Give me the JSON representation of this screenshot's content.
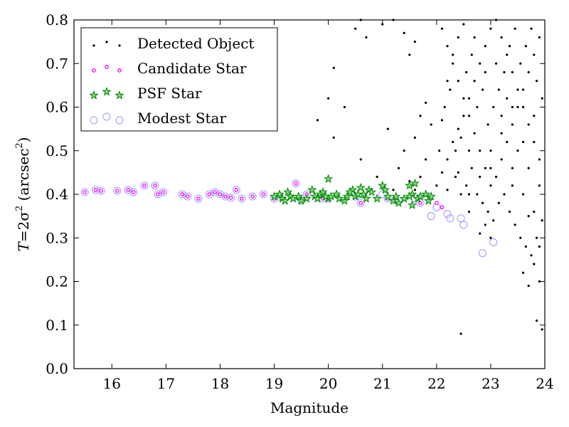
{
  "chart_data": {
    "type": "scatter",
    "title": "",
    "xlabel": "Magnitude",
    "ylabel_parts": {
      "pre": "T",
      "mid": "=2σ",
      "sup1": "2",
      "unit_open": " (arcsec",
      "sup2": "2",
      "unit_close": ")"
    },
    "xlim": [
      15.3,
      24.0
    ],
    "ylim": [
      0.0,
      0.8
    ],
    "xticks": [
      "16",
      "17",
      "18",
      "19",
      "20",
      "21",
      "22",
      "23",
      "24"
    ],
    "yticks": [
      "0.0",
      "0.1",
      "0.2",
      "0.3",
      "0.4",
      "0.5",
      "0.6",
      "0.7",
      "0.8"
    ],
    "grid": false,
    "legend_position": "top-left",
    "series": [
      {
        "name": "Detected Object",
        "marker": "dot",
        "color": "#000000",
        "points": [
          [
            20.5,
            0.78
          ],
          [
            20.6,
            0.8
          ],
          [
            20.7,
            0.76
          ],
          [
            21.0,
            0.79
          ],
          [
            21.2,
            0.8
          ],
          [
            21.4,
            0.77
          ],
          [
            21.5,
            0.72
          ],
          [
            21.6,
            0.75
          ],
          [
            20.1,
            0.69
          ],
          [
            19.8,
            0.57
          ],
          [
            20.0,
            0.62
          ],
          [
            20.3,
            0.6
          ],
          [
            20.1,
            0.53
          ],
          [
            20.6,
            0.48
          ],
          [
            21.1,
            0.55
          ],
          [
            21.3,
            0.46
          ],
          [
            21.4,
            0.5
          ],
          [
            21.6,
            0.53
          ],
          [
            21.7,
            0.58
          ],
          [
            21.8,
            0.61
          ],
          [
            21.9,
            0.56
          ],
          [
            21.5,
            0.43
          ],
          [
            21.7,
            0.44
          ],
          [
            21.8,
            0.48
          ],
          [
            20.9,
            0.44
          ],
          [
            21.2,
            0.41
          ],
          [
            21.6,
            0.41
          ],
          [
            22.0,
            0.42
          ],
          [
            22.1,
            0.45
          ],
          [
            22.2,
            0.48
          ],
          [
            22.3,
            0.52
          ],
          [
            22.4,
            0.55
          ],
          [
            22.5,
            0.58
          ],
          [
            22.6,
            0.62
          ],
          [
            22.7,
            0.66
          ],
          [
            22.8,
            0.7
          ],
          [
            22.9,
            0.74
          ],
          [
            23.0,
            0.78
          ],
          [
            23.1,
            0.8
          ],
          [
            23.2,
            0.76
          ],
          [
            23.3,
            0.72
          ],
          [
            23.4,
            0.68
          ],
          [
            23.5,
            0.64
          ],
          [
            23.6,
            0.6
          ],
          [
            23.7,
            0.56
          ],
          [
            23.8,
            0.52
          ],
          [
            23.9,
            0.48
          ],
          [
            22.1,
            0.78
          ],
          [
            22.2,
            0.74
          ],
          [
            22.3,
            0.7
          ],
          [
            22.4,
            0.66
          ],
          [
            22.5,
            0.62
          ],
          [
            22.6,
            0.58
          ],
          [
            22.7,
            0.54
          ],
          [
            22.8,
            0.5
          ],
          [
            22.9,
            0.46
          ],
          [
            23.0,
            0.42
          ],
          [
            23.1,
            0.44
          ],
          [
            23.2,
            0.48
          ],
          [
            23.3,
            0.52
          ],
          [
            23.4,
            0.56
          ],
          [
            23.5,
            0.6
          ],
          [
            23.6,
            0.64
          ],
          [
            23.7,
            0.68
          ],
          [
            23.8,
            0.72
          ],
          [
            23.9,
            0.76
          ],
          [
            22.15,
            0.6
          ],
          [
            22.25,
            0.64
          ],
          [
            22.35,
            0.44
          ],
          [
            22.45,
            0.4
          ],
          [
            22.55,
            0.42
          ],
          [
            22.65,
            0.46
          ],
          [
            22.75,
            0.4
          ],
          [
            22.85,
            0.38
          ],
          [
            22.95,
            0.36
          ],
          [
            23.05,
            0.34
          ],
          [
            23.15,
            0.38
          ],
          [
            23.25,
            0.4
          ],
          [
            23.35,
            0.36
          ],
          [
            23.45,
            0.33
          ],
          [
            23.55,
            0.3
          ],
          [
            23.65,
            0.28
          ],
          [
            23.75,
            0.26
          ],
          [
            23.85,
            0.3
          ],
          [
            23.95,
            0.34
          ],
          [
            23.6,
            0.22
          ],
          [
            23.7,
            0.19
          ],
          [
            23.8,
            0.24
          ],
          [
            23.9,
            0.2
          ],
          [
            23.85,
            0.11
          ],
          [
            23.95,
            0.09
          ],
          [
            22.45,
            0.08
          ],
          [
            22.8,
            0.31
          ],
          [
            22.9,
            0.33
          ],
          [
            23.0,
            0.3
          ],
          [
            22.6,
            0.36
          ],
          [
            22.35,
            0.5
          ],
          [
            22.45,
            0.53
          ],
          [
            22.55,
            0.68
          ],
          [
            22.65,
            0.72
          ],
          [
            22.75,
            0.6
          ],
          [
            22.85,
            0.64
          ],
          [
            22.95,
            0.56
          ],
          [
            23.05,
            0.6
          ],
          [
            23.15,
            0.64
          ],
          [
            23.25,
            0.68
          ],
          [
            23.35,
            0.74
          ],
          [
            23.45,
            0.78
          ],
          [
            23.55,
            0.7
          ],
          [
            23.65,
            0.74
          ],
          [
            23.75,
            0.78
          ],
          [
            23.85,
            0.66
          ],
          [
            23.95,
            0.62
          ],
          [
            22.05,
            0.5
          ],
          [
            22.1,
            0.57
          ],
          [
            22.2,
            0.66
          ],
          [
            22.3,
            0.72
          ],
          [
            22.4,
            0.76
          ],
          [
            22.5,
            0.79
          ],
          [
            22.7,
            0.76
          ],
          [
            22.9,
            0.68
          ],
          [
            23.1,
            0.7
          ],
          [
            23.3,
            0.62
          ],
          [
            23.5,
            0.5
          ],
          [
            23.7,
            0.46
          ],
          [
            23.9,
            0.42
          ],
          [
            23.2,
            0.54
          ],
          [
            23.4,
            0.46
          ],
          [
            23.6,
            0.4
          ],
          [
            23.8,
            0.36
          ],
          [
            22.6,
            0.5
          ],
          [
            22.8,
            0.44
          ],
          [
            23.0,
            0.5
          ],
          [
            23.2,
            0.58
          ],
          [
            23.4,
            0.6
          ],
          [
            23.6,
            0.52
          ],
          [
            23.8,
            0.58
          ],
          [
            22.2,
            0.41
          ],
          [
            22.4,
            0.45
          ],
          [
            22.6,
            0.4
          ],
          [
            23.0,
            0.46
          ],
          [
            23.4,
            0.42
          ],
          [
            23.7,
            0.35
          ],
          [
            23.9,
            0.28
          ]
        ]
      },
      {
        "name": "Candidate Star",
        "marker": "small-circle",
        "color": "#ff00ff",
        "points": [
          [
            15.5,
            0.405
          ],
          [
            15.7,
            0.41
          ],
          [
            15.8,
            0.408
          ],
          [
            16.1,
            0.408
          ],
          [
            16.3,
            0.41
          ],
          [
            16.4,
            0.405
          ],
          [
            16.6,
            0.42
          ],
          [
            16.8,
            0.42
          ],
          [
            16.85,
            0.4
          ],
          [
            16.95,
            0.405
          ],
          [
            17.3,
            0.4
          ],
          [
            17.4,
            0.395
          ],
          [
            17.6,
            0.39
          ],
          [
            17.8,
            0.4
          ],
          [
            17.9,
            0.405
          ],
          [
            18.0,
            0.4
          ],
          [
            18.1,
            0.395
          ],
          [
            18.2,
            0.392
          ],
          [
            18.3,
            0.41
          ],
          [
            18.4,
            0.39
          ],
          [
            18.6,
            0.395
          ],
          [
            18.8,
            0.4
          ],
          [
            19.0,
            0.39
          ],
          [
            19.4,
            0.425
          ],
          [
            19.6,
            0.4
          ],
          [
            19.9,
            0.39
          ],
          [
            20.6,
            0.38
          ],
          [
            21.1,
            0.39
          ],
          [
            21.7,
            0.38
          ],
          [
            22.0,
            0.38
          ],
          [
            22.1,
            0.37
          ]
        ]
      },
      {
        "name": "PSF Star",
        "marker": "star",
        "color": "#008000",
        "points": [
          [
            19.0,
            0.395
          ],
          [
            19.1,
            0.4
          ],
          [
            19.15,
            0.39
          ],
          [
            19.2,
            0.385
          ],
          [
            19.25,
            0.405
          ],
          [
            19.3,
            0.395
          ],
          [
            19.35,
            0.39
          ],
          [
            19.45,
            0.395
          ],
          [
            19.5,
            0.385
          ],
          [
            19.6,
            0.39
          ],
          [
            19.7,
            0.41
          ],
          [
            19.75,
            0.395
          ],
          [
            19.8,
            0.39
          ],
          [
            19.85,
            0.4
          ],
          [
            19.9,
            0.405
          ],
          [
            20.0,
            0.39
          ],
          [
            20.0,
            0.435
          ],
          [
            20.05,
            0.395
          ],
          [
            20.15,
            0.4
          ],
          [
            20.2,
            0.39
          ],
          [
            20.3,
            0.385
          ],
          [
            20.35,
            0.395
          ],
          [
            20.45,
            0.41
          ],
          [
            20.5,
            0.395
          ],
          [
            20.6,
            0.415
          ],
          [
            20.65,
            0.4
          ],
          [
            20.7,
            0.39
          ],
          [
            20.75,
            0.41
          ],
          [
            20.8,
            0.405
          ],
          [
            20.9,
            0.39
          ],
          [
            21.0,
            0.42
          ],
          [
            21.05,
            0.41
          ],
          [
            21.1,
            0.395
          ],
          [
            21.2,
            0.385
          ],
          [
            21.25,
            0.395
          ],
          [
            21.3,
            0.38
          ],
          [
            21.4,
            0.39
          ],
          [
            21.5,
            0.42
          ],
          [
            21.55,
            0.4
          ],
          [
            21.6,
            0.425
          ],
          [
            21.65,
            0.39
          ],
          [
            21.7,
            0.395
          ],
          [
            21.8,
            0.4
          ],
          [
            21.85,
            0.385
          ],
          [
            21.9,
            0.395
          ],
          [
            21.5,
            0.395
          ],
          [
            21.55,
            0.375
          ],
          [
            20.4,
            0.405
          ],
          [
            19.95,
            0.395
          ],
          [
            20.55,
            0.4
          ]
        ]
      },
      {
        "name": "Modest Star",
        "marker": "open-circle",
        "color": "#9999ff",
        "points": [
          [
            15.5,
            0.405
          ],
          [
            15.7,
            0.41
          ],
          [
            15.8,
            0.408
          ],
          [
            16.1,
            0.408
          ],
          [
            16.3,
            0.41
          ],
          [
            16.4,
            0.405
          ],
          [
            16.6,
            0.42
          ],
          [
            16.8,
            0.42
          ],
          [
            16.85,
            0.4
          ],
          [
            16.95,
            0.405
          ],
          [
            17.3,
            0.4
          ],
          [
            17.4,
            0.395
          ],
          [
            17.6,
            0.39
          ],
          [
            17.8,
            0.4
          ],
          [
            17.9,
            0.405
          ],
          [
            18.0,
            0.4
          ],
          [
            18.1,
            0.395
          ],
          [
            18.2,
            0.392
          ],
          [
            18.3,
            0.41
          ],
          [
            18.4,
            0.39
          ],
          [
            18.6,
            0.395
          ],
          [
            18.8,
            0.4
          ],
          [
            19.0,
            0.39
          ],
          [
            19.4,
            0.425
          ],
          [
            19.6,
            0.4
          ],
          [
            19.9,
            0.39
          ],
          [
            20.6,
            0.38
          ],
          [
            21.1,
            0.39
          ],
          [
            21.7,
            0.38
          ],
          [
            22.0,
            0.37
          ],
          [
            21.9,
            0.35
          ],
          [
            22.2,
            0.355
          ],
          [
            22.25,
            0.345
          ],
          [
            22.45,
            0.345
          ],
          [
            22.5,
            0.33
          ],
          [
            22.85,
            0.265
          ],
          [
            23.05,
            0.29
          ],
          [
            19.1,
            0.395
          ],
          [
            19.5,
            0.385
          ],
          [
            20.0,
            0.39
          ],
          [
            20.5,
            0.395
          ],
          [
            21.0,
            0.4
          ],
          [
            21.3,
            0.385
          ],
          [
            21.6,
            0.39
          ]
        ]
      }
    ]
  }
}
